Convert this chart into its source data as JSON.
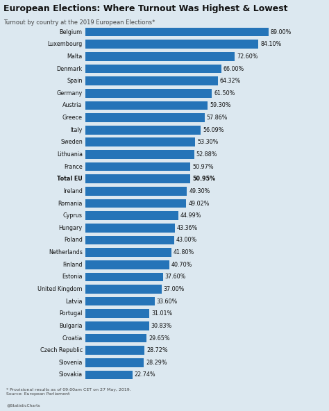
{
  "title": "European Elections: Where Turnout Was Highest & Lowest",
  "subtitle": "Turnout by country at the 2019 European Elections*",
  "countries": [
    "Belgium",
    "Luxembourg",
    "Malta",
    "Denmark",
    "Spain",
    "Germany",
    "Austria",
    "Greece",
    "Italy",
    "Sweden",
    "Lithuania",
    "France",
    "Total EU",
    "Ireland",
    "Romania",
    "Cyprus",
    "Hungary",
    "Poland",
    "Netherlands",
    "Finland",
    "Estonia",
    "United Kingdom",
    "Latvia",
    "Portugal",
    "Bulgaria",
    "Croatia",
    "Czech Republic",
    "Slovenia",
    "Slovakia"
  ],
  "values": [
    89.0,
    84.1,
    72.6,
    66.0,
    64.32,
    61.5,
    59.3,
    57.86,
    56.09,
    53.3,
    52.88,
    50.97,
    50.95,
    49.3,
    49.02,
    44.99,
    43.36,
    43.0,
    41.8,
    40.7,
    37.6,
    37.0,
    33.6,
    31.01,
    30.83,
    29.65,
    28.72,
    28.29,
    22.74
  ],
  "labels": [
    "89.00%",
    "84.10%",
    "72.60%",
    "66.00%",
    "64.32%",
    "61.50%",
    "59.30%",
    "57.86%",
    "56.09%",
    "53.30%",
    "52.88%",
    "50.97%",
    "50.95%",
    "49.30%",
    "49.02%",
    "44.99%",
    "43.36%",
    "43.00%",
    "41.80%",
    "40.70%",
    "37.60%",
    "37.00%",
    "33.60%",
    "31.01%",
    "30.83%",
    "29.65%",
    "28.72%",
    "28.29%",
    "22.74%"
  ],
  "bold_indices": [
    12
  ],
  "bar_color": "#2574b8",
  "bg_color": "#dce8f0",
  "plot_bg_color": "#dce8f0",
  "title_color": "#111111",
  "subtitle_color": "#444444",
  "label_color": "#111111",
  "country_color": "#111111",
  "footer_text": "* Provisional results as of 09:00am CET on 27 May, 2019.\nSource: European Parliament",
  "footer_brand": "@StatisticCharts"
}
